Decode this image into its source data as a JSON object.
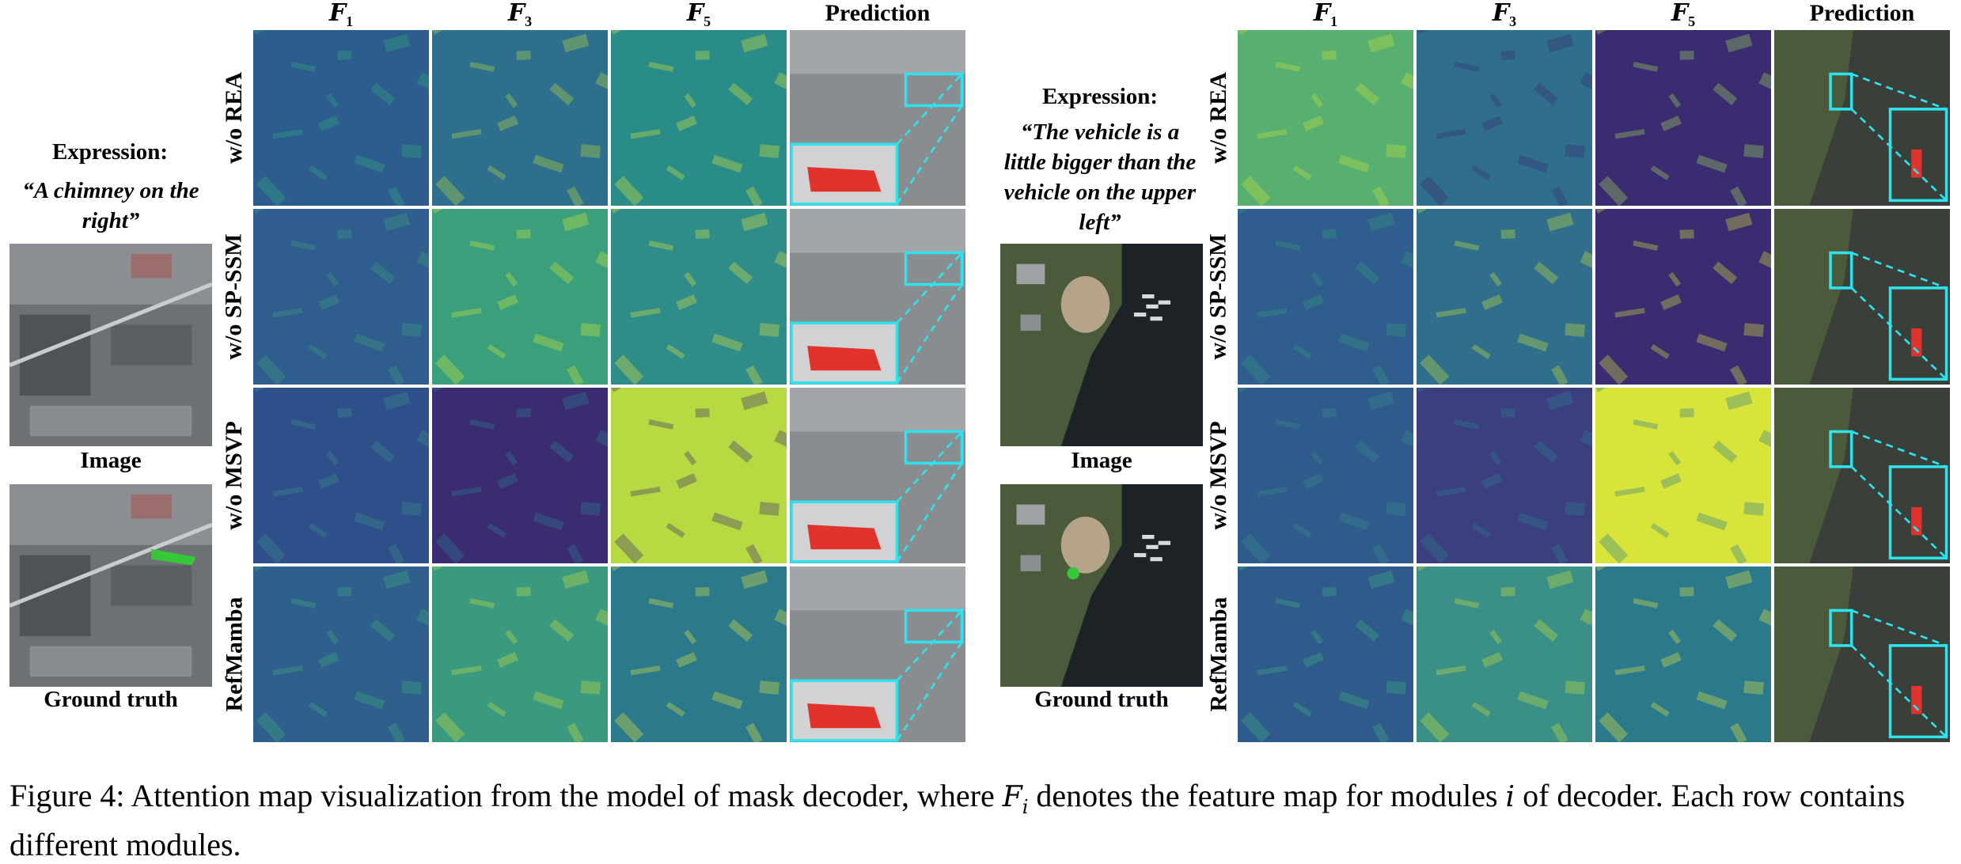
{
  "columns": [
    "F",
    "F",
    "F",
    "Prediction"
  ],
  "column_subscripts": [
    "1",
    "3",
    "5",
    ""
  ],
  "rows": [
    "w/o REA",
    "w/o SP-SSM",
    "w/o MSVP",
    "RefMamba"
  ],
  "left_example": {
    "expression_title": "Expression:",
    "expression_text": "“A chimney on the right”",
    "image_label": "Image",
    "gt_label": "Ground truth"
  },
  "right_example": {
    "expression_title": "Expression:",
    "expression_text": "“The vehicle is a little bigger than the vehicle on the upper left”",
    "image_label": "Image",
    "gt_label": "Ground truth"
  },
  "caption": {
    "prefix": "Figure 4: Attention map visualization from the model of mask decoder, where ",
    "sym1": "F",
    "sub1": "i",
    "middle": " denotes the feature map for modules ",
    "sym2": "i",
    "suffix": " of decoder. Each row contains different modules."
  },
  "colors": {
    "viridis_low": "#3b2c72",
    "viridis_mid": "#2a7f8e",
    "viridis_high": "#d9e43a",
    "highlight_box": "#2fe3ee",
    "mask_red": "#e1322c",
    "gt_green": "#37c83a",
    "ellipse_yellow": "#f2e73a"
  }
}
